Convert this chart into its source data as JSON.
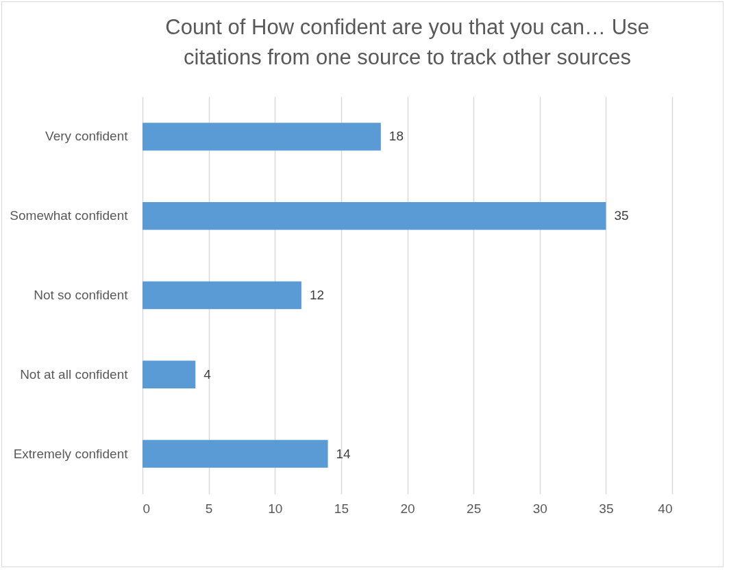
{
  "chart_data": {
    "type": "bar",
    "orientation": "horizontal",
    "title": "Count of How confident are you that you can… Use citations from one source to track other sources",
    "categories": [
      "Very confident",
      "Somewhat confident",
      "Not so confident",
      "Not at all confident",
      "Extremely confident"
    ],
    "values": [
      18,
      35,
      12,
      4,
      14
    ],
    "color": "#5b9bd5",
    "xlim": [
      0,
      40
    ],
    "xticks": [
      0,
      5,
      10,
      15,
      20,
      25,
      30,
      35,
      40
    ],
    "grid": "x",
    "data_labels": true
  }
}
